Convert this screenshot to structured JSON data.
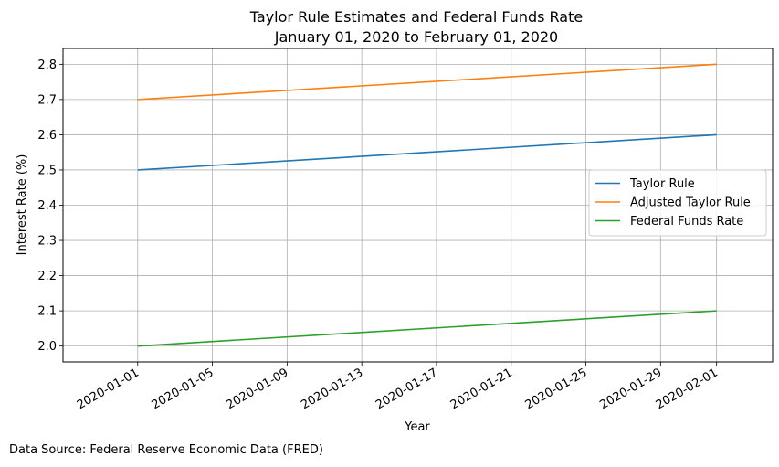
{
  "chart_data": {
    "type": "line",
    "title": "Taylor Rule Estimates and Federal Funds Rate",
    "subtitle": "January 01, 2020 to February 01, 2020",
    "xlabel": "Year",
    "ylabel": "Interest Rate (%)",
    "xlim": [
      "2019-12-28",
      "2020-02-04"
    ],
    "ylim": [
      1.955,
      2.845
    ],
    "grid": true,
    "legend_position": "center-right",
    "x_ticks": [
      "2020-01-01",
      "2020-01-05",
      "2020-01-09",
      "2020-01-13",
      "2020-01-17",
      "2020-01-21",
      "2020-01-25",
      "2020-01-29",
      "2020-02-01"
    ],
    "y_ticks": [
      "2.0",
      "2.1",
      "2.2",
      "2.3",
      "2.4",
      "2.5",
      "2.6",
      "2.7",
      "2.8"
    ],
    "x": [
      "2020-01-01",
      "2020-02-01"
    ],
    "series": [
      {
        "name": "Taylor Rule",
        "color": "#1f77b4",
        "values": [
          2.5,
          2.6
        ]
      },
      {
        "name": "Adjusted Taylor Rule",
        "color": "#ff7f0e",
        "values": [
          2.7,
          2.8
        ]
      },
      {
        "name": "Federal Funds Rate",
        "color": "#2ca02c",
        "values": [
          2.0,
          2.1
        ]
      }
    ]
  },
  "source_note": "Data Source: Federal Reserve Economic Data (FRED)"
}
